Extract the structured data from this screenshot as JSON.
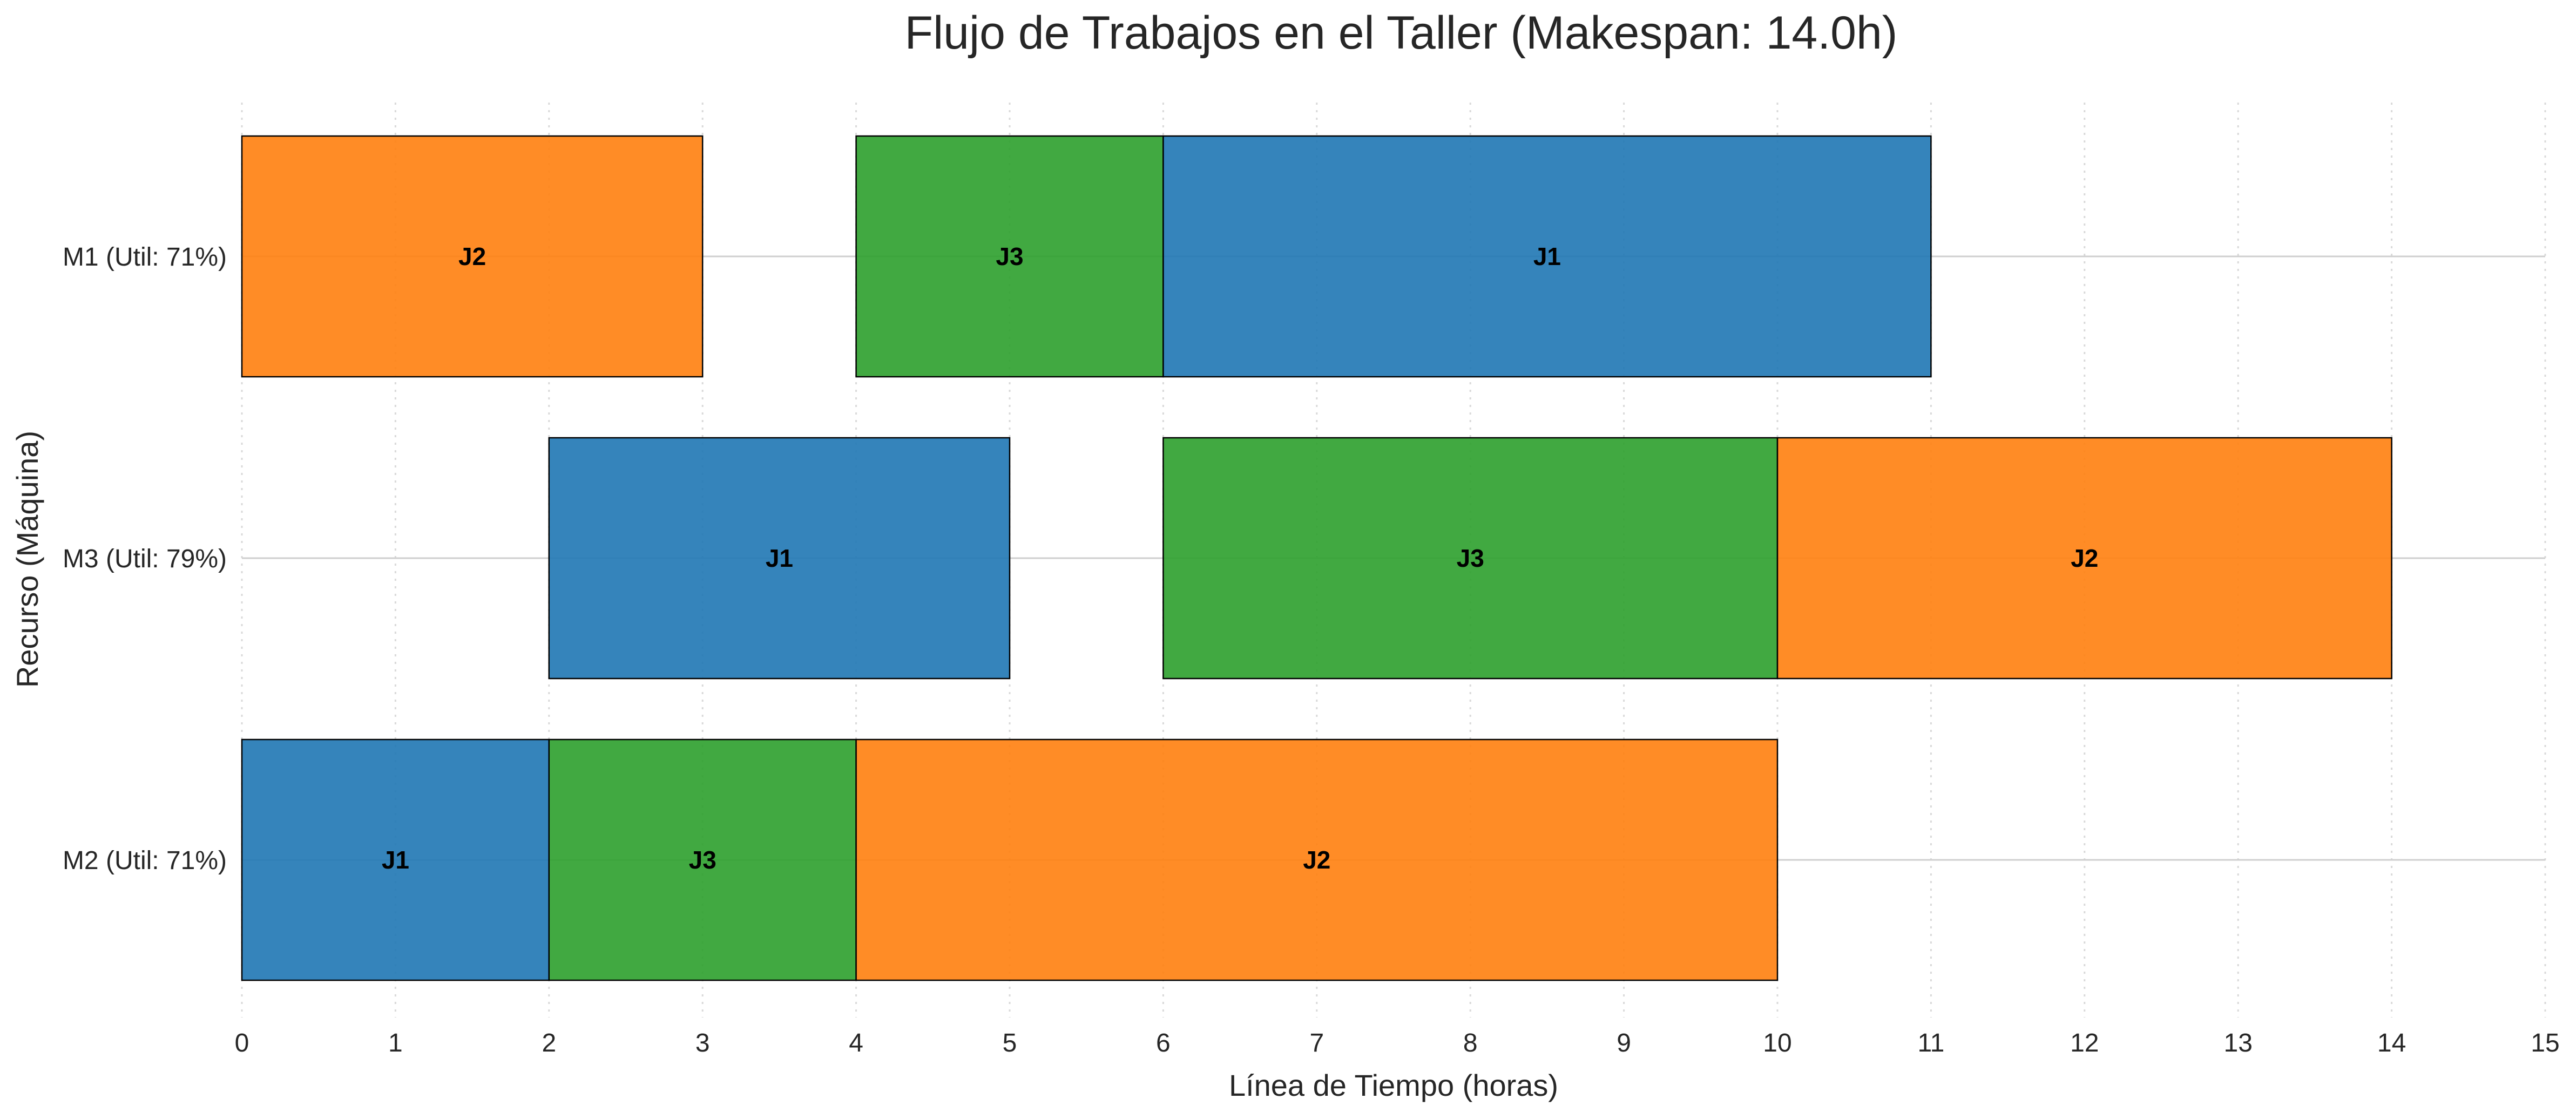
{
  "chart_data": {
    "type": "gantt",
    "title": "Flujo de Trabajos en el Taller (Makespan: 14.0h)",
    "xlabel": "Línea de Tiempo (horas)",
    "ylabel": "Recurso (Máquina)",
    "xlim": [
      0,
      15
    ],
    "xticks": [
      "0",
      "1",
      "2",
      "3",
      "4",
      "5",
      "6",
      "7",
      "8",
      "9",
      "10",
      "11",
      "12",
      "13",
      "14",
      "15"
    ],
    "grid": true,
    "machines": [
      "M1 (Util: 71%)",
      "M3 (Util: 79%)",
      "M2 (Util: 71%)"
    ],
    "job_colors": {
      "J1": "#1f77b4",
      "J2": "#ff7f0e",
      "J3": "#2ca02c"
    },
    "tasks": [
      {
        "machine": 0,
        "job": "J2",
        "start": 0,
        "end": 3
      },
      {
        "machine": 0,
        "job": "J3",
        "start": 4,
        "end": 6
      },
      {
        "machine": 0,
        "job": "J1",
        "start": 6,
        "end": 11
      },
      {
        "machine": 1,
        "job": "J1",
        "start": 2,
        "end": 5
      },
      {
        "machine": 1,
        "job": "J3",
        "start": 6,
        "end": 10
      },
      {
        "machine": 1,
        "job": "J2",
        "start": 10,
        "end": 14
      },
      {
        "machine": 2,
        "job": "J1",
        "start": 0,
        "end": 2
      },
      {
        "machine": 2,
        "job": "J3",
        "start": 2,
        "end": 4
      },
      {
        "machine": 2,
        "job": "J2",
        "start": 4,
        "end": 10
      }
    ]
  }
}
